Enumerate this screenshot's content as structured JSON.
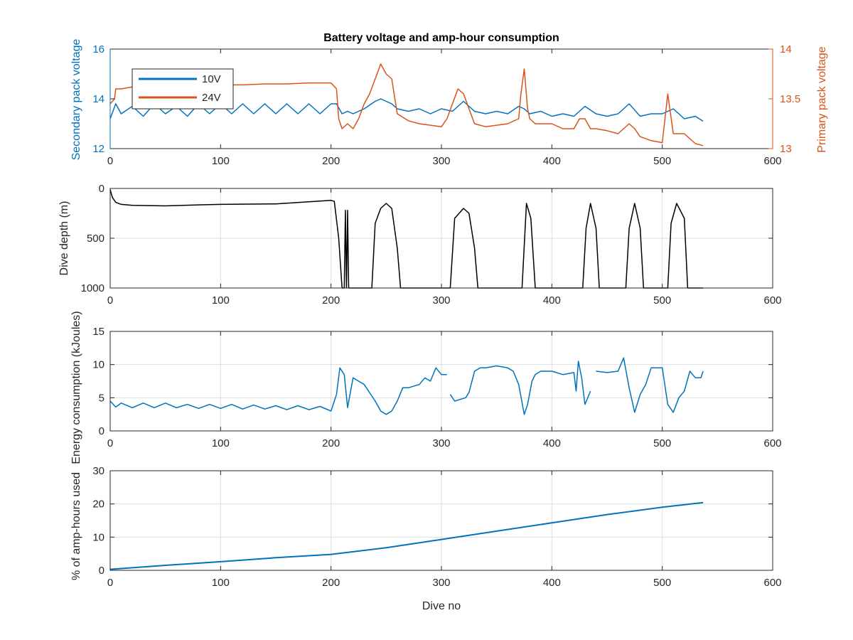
{
  "title": "Battery voltage and amp-hour consumption",
  "colors": {
    "blue": "#0072BD",
    "orange": "#D95319",
    "black": "#000000"
  },
  "chart_data": [
    {
      "type": "line",
      "title": "Battery voltage and amp-hour consumption",
      "xlabel": "",
      "ylabel": "Secondary pack voltage",
      "ylabel_right": "Primary pack voltage",
      "xlim": [
        0,
        600
      ],
      "ylim": [
        12,
        16
      ],
      "ylim_right": [
        13,
        14
      ],
      "xticks": [
        0,
        100,
        200,
        300,
        400,
        500,
        600
      ],
      "yticks": [
        12,
        14,
        16
      ],
      "yticks_right": [
        13,
        13.5,
        14
      ],
      "grid": false,
      "legend": "top-left",
      "series": [
        {
          "name": "10V",
          "axis": "left",
          "color": "#0072BD",
          "x": [
            0,
            5,
            10,
            20,
            30,
            40,
            50,
            60,
            70,
            80,
            90,
            100,
            110,
            120,
            130,
            140,
            150,
            160,
            170,
            180,
            190,
            200,
            205,
            210,
            215,
            220,
            230,
            240,
            245,
            250,
            255,
            260,
            270,
            280,
            290,
            300,
            310,
            320,
            325,
            330,
            340,
            350,
            360,
            370,
            375,
            380,
            390,
            400,
            410,
            420,
            430,
            440,
            450,
            460,
            470,
            480,
            490,
            500,
            510,
            520,
            530,
            537
          ],
          "y": [
            13.2,
            13.8,
            13.4,
            13.7,
            13.3,
            13.8,
            13.4,
            13.7,
            13.3,
            13.8,
            13.4,
            13.8,
            13.4,
            13.8,
            13.4,
            13.8,
            13.4,
            13.8,
            13.4,
            13.8,
            13.4,
            13.8,
            13.8,
            13.4,
            13.5,
            13.4,
            13.6,
            13.9,
            14.0,
            13.9,
            13.8,
            13.6,
            13.5,
            13.6,
            13.4,
            13.6,
            13.5,
            13.9,
            13.7,
            13.5,
            13.4,
            13.5,
            13.4,
            13.7,
            13.6,
            13.4,
            13.5,
            13.3,
            13.4,
            13.3,
            13.7,
            13.4,
            13.3,
            13.4,
            13.8,
            13.3,
            13.4,
            13.4,
            13.6,
            13.2,
            13.3,
            13.1
          ]
        },
        {
          "name": "24V",
          "axis": "right",
          "color": "#D95319",
          "x": [
            0,
            4,
            5,
            10,
            20,
            40,
            60,
            80,
            100,
            120,
            140,
            160,
            180,
            200,
            205,
            207,
            210,
            215,
            220,
            225,
            230,
            235,
            240,
            245,
            250,
            255,
            260,
            270,
            280,
            300,
            305,
            310,
            315,
            320,
            325,
            330,
            340,
            360,
            370,
            372,
            375,
            378,
            380,
            385,
            390,
            400,
            410,
            420,
            425,
            430,
            435,
            440,
            450,
            460,
            470,
            475,
            480,
            490,
            500,
            505,
            510,
            520,
            530,
            537
          ],
          "y": [
            13.45,
            13.5,
            13.6,
            13.6,
            13.62,
            13.62,
            13.63,
            13.64,
            13.64,
            13.64,
            13.65,
            13.65,
            13.66,
            13.66,
            13.6,
            13.3,
            13.2,
            13.25,
            13.2,
            13.3,
            13.45,
            13.55,
            13.7,
            13.85,
            13.75,
            13.7,
            13.35,
            13.28,
            13.25,
            13.22,
            13.3,
            13.45,
            13.6,
            13.55,
            13.4,
            13.25,
            13.22,
            13.25,
            13.3,
            13.55,
            13.8,
            13.4,
            13.3,
            13.25,
            13.25,
            13.25,
            13.2,
            13.2,
            13.3,
            13.3,
            13.2,
            13.2,
            13.18,
            13.15,
            13.25,
            13.2,
            13.12,
            13.08,
            13.06,
            13.55,
            13.15,
            13.15,
            13.05,
            13.03
          ]
        }
      ]
    },
    {
      "type": "line",
      "title": "",
      "xlabel": "",
      "ylabel": "Dive depth (m)",
      "xlim": [
        0,
        600
      ],
      "ylim": [
        1000,
        0
      ],
      "reversed_y": true,
      "xticks": [
        0,
        100,
        200,
        300,
        400,
        500,
        600
      ],
      "yticks": [
        0,
        500,
        1000
      ],
      "grid": true,
      "series": [
        {
          "color": "#000000",
          "x": [
            0,
            2,
            5,
            10,
            20,
            50,
            80,
            100,
            150,
            200,
            203,
            207,
            210,
            212,
            213,
            214,
            215,
            216,
            217,
            220,
            230,
            237,
            240,
            245,
            250,
            255,
            260,
            263,
            270,
            300,
            308,
            312,
            320,
            325,
            330,
            333,
            340,
            370,
            373,
            377,
            381,
            385,
            400,
            428,
            431,
            435,
            440,
            443,
            450,
            467,
            470,
            475,
            480,
            483,
            490,
            505,
            508,
            513,
            520,
            523,
            537
          ],
          "y": [
            10,
            90,
            140,
            160,
            170,
            175,
            165,
            160,
            155,
            120,
            130,
            500,
            1000,
            1000,
            220,
            1000,
            220,
            1000,
            1000,
            1000,
            1000,
            1000,
            350,
            200,
            150,
            200,
            600,
            1000,
            1000,
            1000,
            1000,
            300,
            200,
            250,
            600,
            1000,
            1000,
            1000,
            1000,
            150,
            300,
            1000,
            1000,
            1000,
            400,
            150,
            400,
            1000,
            1000,
            1000,
            400,
            150,
            400,
            1000,
            1000,
            1000,
            350,
            150,
            300,
            1000,
            1000
          ]
        }
      ]
    },
    {
      "type": "line",
      "title": "",
      "xlabel": "",
      "ylabel": "Energy consumption (kJoules)",
      "xlim": [
        0,
        600
      ],
      "ylim": [
        0,
        15
      ],
      "xticks": [
        0,
        100,
        200,
        300,
        400,
        500,
        600
      ],
      "yticks": [
        0,
        5,
        10,
        15
      ],
      "grid": true,
      "series": [
        {
          "color": "#0072BD",
          "segments": [
            {
              "x": [
                0,
                5,
                10,
                20,
                30,
                40,
                50,
                60,
                70,
                80,
                90,
                100,
                110,
                120,
                130,
                140,
                150,
                160,
                170,
                180,
                190,
                200,
                205,
                208,
                212,
                215,
                220,
                225,
                230,
                240,
                245,
                250,
                255,
                260,
                265,
                270,
                280,
                285,
                290,
                295,
                300,
                305
              ],
              "y": [
                4.5,
                3.6,
                4.2,
                3.5,
                4.2,
                3.5,
                4.2,
                3.5,
                4.0,
                3.4,
                4.0,
                3.4,
                4.0,
                3.3,
                3.9,
                3.3,
                3.8,
                3.2,
                3.8,
                3.2,
                3.7,
                3.0,
                5.5,
                9.5,
                8.5,
                3.5,
                8.0,
                7.5,
                7.0,
                4.5,
                3.0,
                2.5,
                3.0,
                4.5,
                6.5,
                6.5,
                7.0,
                8.0,
                7.5,
                9.5,
                8.5,
                8.5
              ]
            },
            {
              "x": [
                308,
                312,
                318,
                322,
                325,
                330,
                335,
                340,
                350,
                360,
                365,
                370,
                375,
                378,
                382,
                385,
                390,
                400,
                410,
                420,
                422,
                424,
                427,
                430,
                435
              ],
              "y": [
                5.5,
                4.5,
                4.8,
                5.0,
                5.8,
                9.0,
                9.5,
                9.5,
                9.8,
                9.5,
                9.0,
                7.0,
                2.5,
                4.0,
                7.5,
                8.5,
                9.0,
                9.0,
                8.5,
                8.8,
                6.0,
                10.5,
                8.0,
                4.0,
                6.0
              ]
            },
            {
              "x": [
                440,
                450,
                460,
                465,
                470,
                475,
                480,
                485,
                490,
                500,
                505,
                510,
                515,
                520,
                525,
                530,
                535,
                537
              ],
              "y": [
                9.0,
                8.8,
                9.0,
                11.0,
                6.5,
                2.8,
                5.5,
                7.0,
                9.5,
                9.5,
                4.0,
                2.8,
                5.0,
                6.0,
                9.0,
                8.0,
                8.0,
                9.0
              ]
            }
          ]
        }
      ]
    },
    {
      "type": "line",
      "title": "",
      "xlabel": "Dive no",
      "ylabel": "% of amp-hours used",
      "xlim": [
        0,
        600
      ],
      "ylim": [
        0,
        30
      ],
      "xticks": [
        0,
        100,
        200,
        300,
        400,
        500,
        600
      ],
      "yticks": [
        0,
        10,
        20,
        30
      ],
      "grid": true,
      "series": [
        {
          "color": "#0072BD",
          "x": [
            0,
            50,
            100,
            150,
            200,
            250,
            300,
            350,
            400,
            450,
            500,
            537
          ],
          "y": [
            0.3,
            1.5,
            2.6,
            3.8,
            4.8,
            6.8,
            9.3,
            11.8,
            14.3,
            16.8,
            19.0,
            20.4
          ]
        }
      ]
    }
  ]
}
